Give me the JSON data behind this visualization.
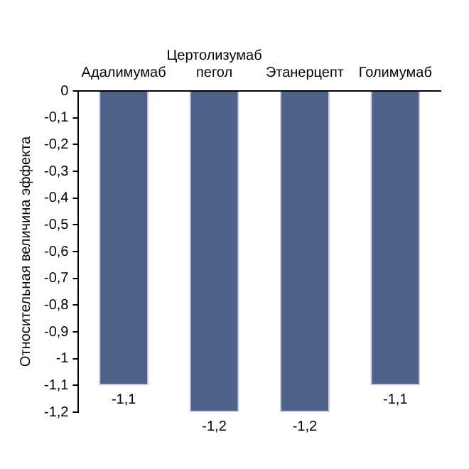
{
  "chart_data": {
    "type": "bar",
    "ylabel": "Относительная величина эффекта",
    "categories": [
      "Адалимумаб",
      "Цертолизумаб пегол",
      "Этанерцепт",
      "Голимумаб"
    ],
    "values": [
      -1.1,
      -1.2,
      -1.2,
      -1.1
    ],
    "value_labels": [
      "-1,1",
      "-1,2",
      "-1,2",
      "-1,1"
    ],
    "color": "#4f6089",
    "ylim": [
      -1.2,
      0
    ],
    "yticks": [
      0,
      {
        "value": -0.1,
        "label": "-0,1"
      },
      {
        "value": -0.2,
        "label": "-0,2"
      },
      {
        "value": -0.3,
        "label": "-0,3"
      },
      {
        "value": -0.4,
        "label": "-0,4"
      },
      {
        "value": -0.5,
        "label": "-0,5"
      },
      {
        "value": -0.6,
        "label": "-0,6"
      },
      {
        "value": -0.7,
        "label": "-0,7"
      },
      {
        "value": -0.8,
        "label": "-0,8"
      },
      {
        "value": -0.9,
        "label": "-0,9"
      },
      -1,
      {
        "value": -1.1,
        "label": "-1,1"
      },
      {
        "value": -1.2,
        "label": "-1,2"
      }
    ],
    "grid": false,
    "legend": false
  }
}
